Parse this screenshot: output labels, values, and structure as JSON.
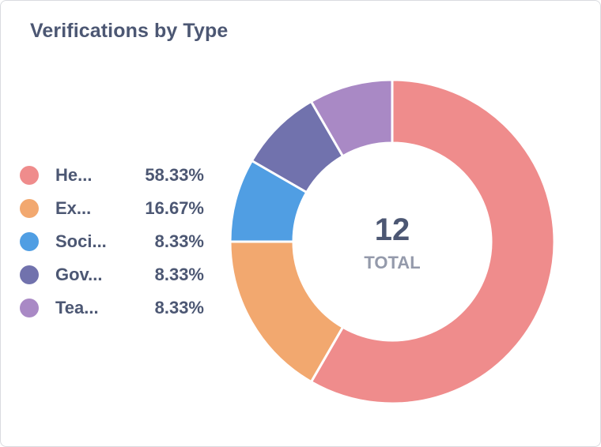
{
  "card": {
    "title": "Verifications by Type"
  },
  "chart_data": {
    "type": "pie",
    "title": "Verifications by Type",
    "total": 12,
    "total_label": "TOTAL",
    "slices": [
      {
        "label": "He...",
        "value": 7,
        "percent": "58.33%",
        "color": "#ef8c8c"
      },
      {
        "label": "Ex...",
        "value": 2,
        "percent": "16.67%",
        "color": "#f2a86f"
      },
      {
        "label": "Soci...",
        "value": 1,
        "percent": "8.33%",
        "color": "#509ee3"
      },
      {
        "label": "Gov...",
        "value": 1,
        "percent": "8.33%",
        "color": "#7172ad"
      },
      {
        "label": "Tea...",
        "value": 1,
        "percent": "8.33%",
        "color": "#a989c5"
      }
    ],
    "legend_position": "left"
  }
}
